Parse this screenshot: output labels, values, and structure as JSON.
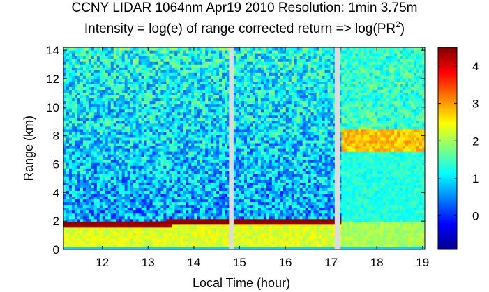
{
  "chart_data": {
    "type": "heatmap",
    "title": "CCNY LIDAR 1064nm Apr19 2010 Resolution: 1min 3.75m",
    "subtitle": "Intensity = log(e) of range corrected return => log(PR",
    "subtitle_sup": "2",
    "subtitle_end": ")",
    "xlabel": "Local Time  (hour)",
    "ylabel": "Range (km)",
    "xlim": [
      11.15,
      19.05
    ],
    "ylim": [
      0,
      14.2
    ],
    "xticks": [
      "12",
      "13",
      "14",
      "15",
      "16",
      "17",
      "18",
      "19"
    ],
    "yticks": [
      "0",
      "2",
      "4",
      "6",
      "8",
      "10",
      "12",
      "14"
    ],
    "colorbar": {
      "range": [
        -0.9,
        4.5
      ],
      "ticks": [
        "0",
        "1",
        "2",
        "3",
        "4"
      ],
      "colormap": "jet"
    },
    "data_gaps_hours": [
      [
        14.77,
        14.87
      ],
      [
        17.08,
        17.2
      ]
    ],
    "boundary_layer_top_km": [
      {
        "x": 11.15,
        "y": 1.8
      },
      {
        "x": 12.0,
        "y": 1.85
      },
      {
        "x": 13.0,
        "y": 1.85
      },
      {
        "x": 14.0,
        "y": 1.9
      },
      {
        "x": 15.0,
        "y": 1.95
      },
      {
        "x": 16.0,
        "y": 2.0
      },
      {
        "x": 17.0,
        "y": 2.0
      },
      {
        "x": 17.25,
        "y": 2.0
      }
    ],
    "cloud_layer_km": {
      "x_start": 17.25,
      "x_end": 19.05,
      "bottom": 7.0,
      "top": 8.5,
      "intensity": 2.8
    }
  }
}
